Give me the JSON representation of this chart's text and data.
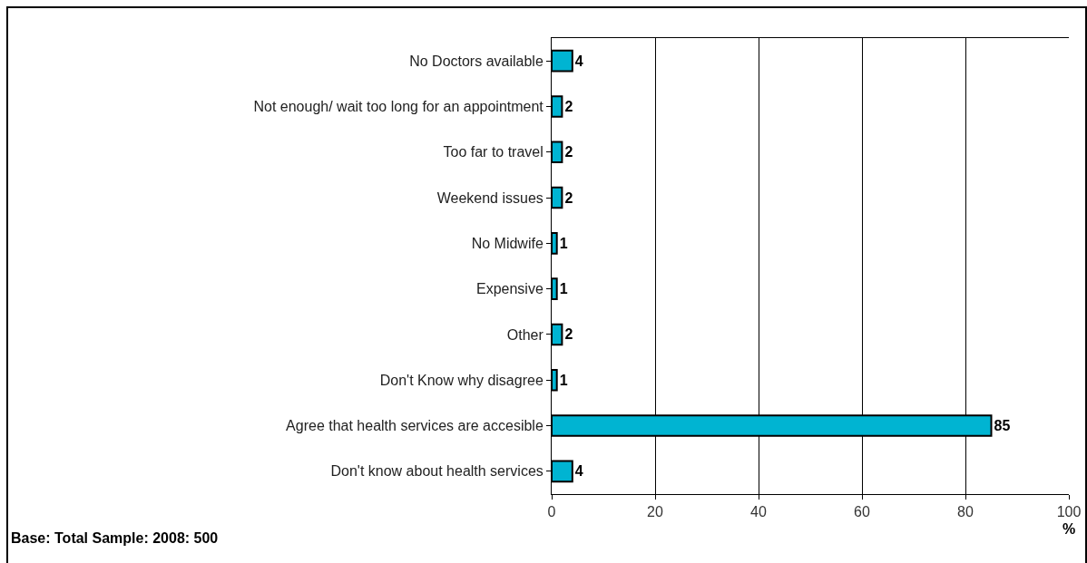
{
  "chart_data": {
    "type": "bar",
    "orientation": "horizontal",
    "xlabel": "%",
    "categories": [
      "No Doctors available",
      "Not enough/ wait too long for an appointment",
      "Too far to travel",
      "Weekend issues",
      "No Midwife",
      "Expensive",
      "Other",
      "Don't Know why disagree",
      "Agree that health services are accesible",
      "Don't know about health services"
    ],
    "values": [
      4,
      2,
      2,
      2,
      1,
      1,
      2,
      1,
      85,
      4
    ],
    "color": "#00b4d2",
    "xlim": [
      0,
      100
    ],
    "xticks": [
      0,
      20,
      40,
      60,
      80,
      100
    ],
    "grid": "x",
    "data_labels": true,
    "annotations": [
      "Base: Total Sample: 2008: 500"
    ]
  }
}
